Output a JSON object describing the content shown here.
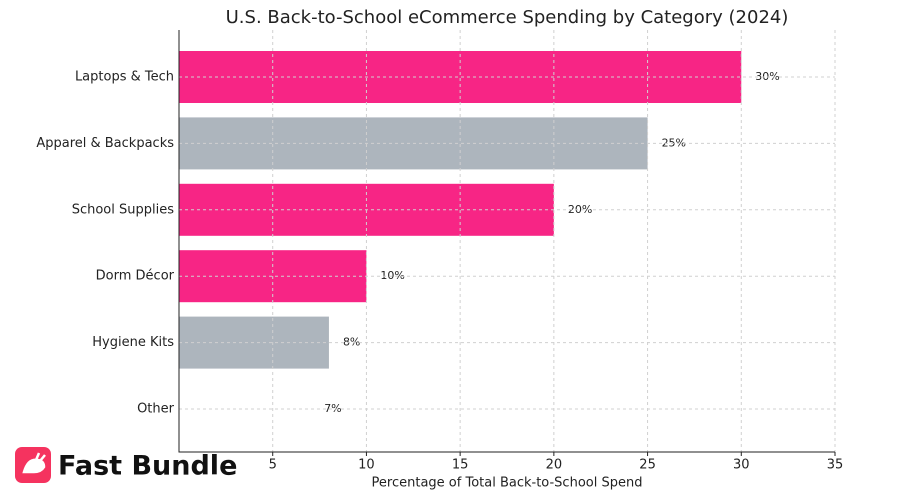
{
  "chart_data": {
    "type": "hbar",
    "title": "U.S. Back-to-School eCommerce Spending by Category (2024)",
    "xlabel": "Percentage of Total Back-to-School Spend",
    "categories": [
      "Laptops & Tech",
      "Apparel & Backpacks",
      "School Supplies",
      "Dorm Décor",
      "Hygiene Kits",
      "Other"
    ],
    "values": [
      30,
      25,
      20,
      10,
      8,
      7
    ],
    "value_labels": [
      "30%",
      "25%",
      "20%",
      "10%",
      "8%",
      "7%"
    ],
    "colors": [
      "#f72585",
      "#adb5bd",
      "#f72585",
      "#f72585",
      "#adb5bd",
      "#ffffff"
    ],
    "xlim": [
      0,
      35
    ],
    "xticks": [
      5,
      10,
      15,
      20,
      25,
      30,
      35
    ],
    "grid": true
  },
  "watermark": "Fast Bundle"
}
